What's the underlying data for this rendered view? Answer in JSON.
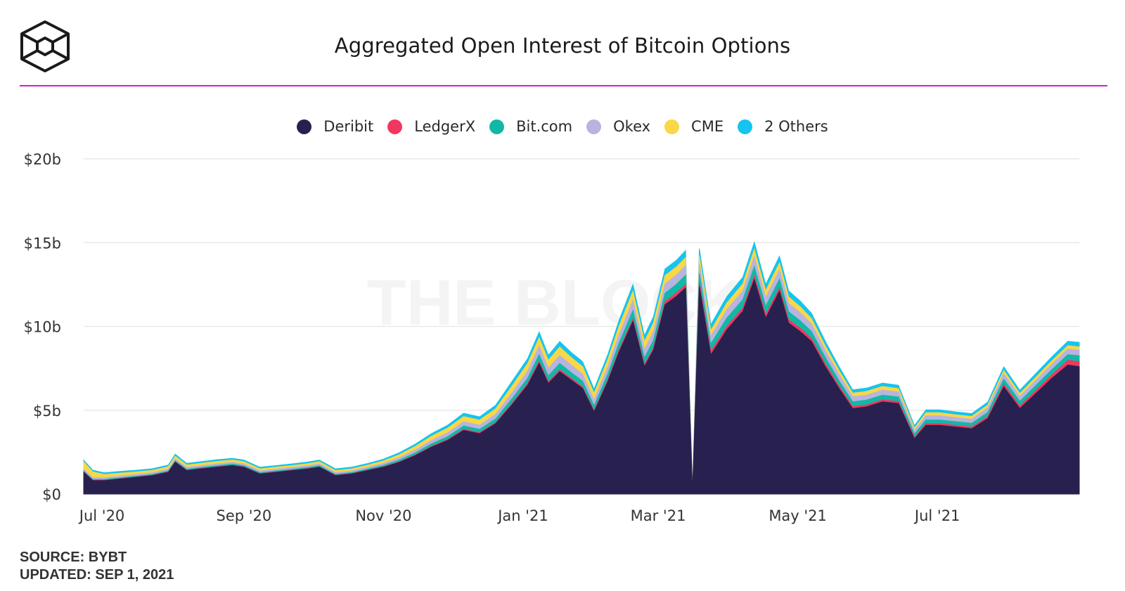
{
  "header": {
    "title": "Aggregated Open Interest of Bitcoin Options"
  },
  "watermark": "THE BLOCK",
  "footer": {
    "source": "SOURCE: BYBT",
    "updated": "UPDATED: SEP 1, 2021"
  },
  "colors": {
    "accent_rule": "#d21ad2"
  },
  "chart_data": {
    "type": "area",
    "stacked": true,
    "title": "Aggregated Open Interest of Bitcoin Options",
    "xlabel": "",
    "ylabel": "",
    "y_ticks": [
      "$0",
      "$5b",
      "$10b",
      "$15b",
      "$20b"
    ],
    "ylim": [
      0,
      20
    ],
    "y_unit": "billion USD",
    "x_ticks": [
      "Jul '20",
      "Sep '20",
      "Nov '20",
      "Jan '21",
      "Mar '21",
      "May '21",
      "Jul '21"
    ],
    "x_tick_dates": [
      "2020-07-01",
      "2020-09-01",
      "2020-11-01",
      "2021-01-01",
      "2021-03-01",
      "2021-05-01",
      "2021-07-01"
    ],
    "x": [
      "2020-06-23",
      "2020-06-27",
      "2020-07-02",
      "2020-07-09",
      "2020-07-16",
      "2020-07-23",
      "2020-07-30",
      "2020-08-02",
      "2020-08-07",
      "2020-08-13",
      "2020-08-20",
      "2020-08-27",
      "2020-09-01",
      "2020-09-08",
      "2020-09-15",
      "2020-09-22",
      "2020-09-29",
      "2020-10-04",
      "2020-10-11",
      "2020-10-18",
      "2020-10-25",
      "2020-11-01",
      "2020-11-08",
      "2020-11-15",
      "2020-11-22",
      "2020-11-29",
      "2020-12-06",
      "2020-12-13",
      "2020-12-20",
      "2020-12-27",
      "2021-01-03",
      "2021-01-08",
      "2021-01-12",
      "2021-01-17",
      "2021-01-22",
      "2021-01-27",
      "2021-02-01",
      "2021-02-07",
      "2021-02-12",
      "2021-02-18",
      "2021-02-23",
      "2021-02-27",
      "2021-03-04",
      "2021-03-09",
      "2021-03-13",
      "2021-03-16",
      "2021-03-19",
      "2021-03-24",
      "2021-03-31",
      "2021-04-07",
      "2021-04-12",
      "2021-04-17",
      "2021-04-23",
      "2021-04-27",
      "2021-05-02",
      "2021-05-07",
      "2021-05-13",
      "2021-05-19",
      "2021-05-25",
      "2021-05-31",
      "2021-06-07",
      "2021-06-14",
      "2021-06-21",
      "2021-06-26",
      "2021-07-02",
      "2021-07-09",
      "2021-07-16",
      "2021-07-23",
      "2021-07-30",
      "2021-08-06",
      "2021-08-13",
      "2021-08-20",
      "2021-08-27",
      "2021-09-01"
    ],
    "series": [
      {
        "name": "Deribit",
        "color": "#28214f",
        "values": [
          1.3,
          0.8,
          0.8,
          0.9,
          1.0,
          1.1,
          1.3,
          1.9,
          1.4,
          1.5,
          1.6,
          1.7,
          1.6,
          1.2,
          1.3,
          1.4,
          1.5,
          1.6,
          1.1,
          1.2,
          1.4,
          1.6,
          1.9,
          2.3,
          2.8,
          3.2,
          3.8,
          3.6,
          4.2,
          5.3,
          6.5,
          7.8,
          6.6,
          7.3,
          6.8,
          6.3,
          4.9,
          6.7,
          8.5,
          10.3,
          7.6,
          8.6,
          11.3,
          11.8,
          12.3,
          0.1,
          12.4,
          8.3,
          9.8,
          10.9,
          12.8,
          10.5,
          12.1,
          10.2,
          9.7,
          9.1,
          7.6,
          6.3,
          5.1,
          5.2,
          5.5,
          5.4,
          3.3,
          4.1,
          4.1,
          4.0,
          3.9,
          4.5,
          6.4,
          5.1,
          6.0,
          6.9,
          7.7,
          7.6
        ]
      },
      {
        "name": "LedgerX",
        "color": "#f2375e",
        "values": [
          0.02,
          0.02,
          0.02,
          0.02,
          0.02,
          0.02,
          0.02,
          0.02,
          0.02,
          0.02,
          0.02,
          0.02,
          0.02,
          0.02,
          0.02,
          0.02,
          0.02,
          0.02,
          0.02,
          0.02,
          0.02,
          0.03,
          0.03,
          0.04,
          0.05,
          0.05,
          0.06,
          0.06,
          0.06,
          0.08,
          0.1,
          0.12,
          0.1,
          0.11,
          0.1,
          0.1,
          0.08,
          0.1,
          0.12,
          0.15,
          0.12,
          0.13,
          0.18,
          0.2,
          0.2,
          0.01,
          0.22,
          0.2,
          0.2,
          0.2,
          0.22,
          0.2,
          0.2,
          0.2,
          0.2,
          0.18,
          0.18,
          0.15,
          0.12,
          0.12,
          0.12,
          0.12,
          0.08,
          0.1,
          0.1,
          0.1,
          0.1,
          0.12,
          0.15,
          0.15,
          0.18,
          0.2,
          0.28,
          0.3
        ]
      },
      {
        "name": "Bit.com",
        "color": "#12b8a6",
        "values": [
          0.05,
          0.05,
          0.05,
          0.05,
          0.05,
          0.05,
          0.06,
          0.06,
          0.06,
          0.06,
          0.07,
          0.07,
          0.07,
          0.06,
          0.06,
          0.06,
          0.07,
          0.07,
          0.06,
          0.06,
          0.07,
          0.08,
          0.1,
          0.12,
          0.15,
          0.17,
          0.2,
          0.2,
          0.22,
          0.28,
          0.32,
          0.4,
          0.35,
          0.38,
          0.35,
          0.33,
          0.28,
          0.35,
          0.42,
          0.5,
          0.4,
          0.45,
          0.5,
          0.52,
          0.55,
          0.01,
          0.55,
          0.45,
          0.5,
          0.5,
          0.55,
          0.5,
          0.52,
          0.48,
          0.45,
          0.42,
          0.38,
          0.32,
          0.28,
          0.28,
          0.28,
          0.27,
          0.2,
          0.22,
          0.22,
          0.22,
          0.22,
          0.25,
          0.3,
          0.28,
          0.3,
          0.32,
          0.34,
          0.35
        ]
      },
      {
        "name": "Okex",
        "color": "#b9b3e0",
        "values": [
          0.1,
          0.1,
          0.1,
          0.1,
          0.1,
          0.1,
          0.1,
          0.1,
          0.1,
          0.1,
          0.1,
          0.1,
          0.1,
          0.1,
          0.1,
          0.1,
          0.1,
          0.1,
          0.1,
          0.1,
          0.1,
          0.12,
          0.14,
          0.17,
          0.2,
          0.23,
          0.26,
          0.25,
          0.28,
          0.35,
          0.42,
          0.5,
          0.45,
          0.48,
          0.45,
          0.42,
          0.35,
          0.42,
          0.5,
          0.6,
          0.48,
          0.52,
          0.55,
          0.55,
          0.58,
          0.01,
          0.58,
          0.45,
          0.5,
          0.52,
          0.58,
          0.52,
          0.55,
          0.5,
          0.48,
          0.45,
          0.4,
          0.35,
          0.3,
          0.3,
          0.3,
          0.3,
          0.2,
          0.25,
          0.25,
          0.24,
          0.24,
          0.26,
          0.32,
          0.28,
          0.3,
          0.32,
          0.33,
          0.33
        ]
      },
      {
        "name": "CME",
        "color": "#fad745",
        "values": [
          0.45,
          0.35,
          0.2,
          0.18,
          0.15,
          0.14,
          0.15,
          0.18,
          0.15,
          0.15,
          0.15,
          0.14,
          0.14,
          0.12,
          0.12,
          0.12,
          0.12,
          0.14,
          0.12,
          0.12,
          0.13,
          0.15,
          0.18,
          0.22,
          0.25,
          0.28,
          0.3,
          0.3,
          0.32,
          0.4,
          0.45,
          0.5,
          0.48,
          0.5,
          0.45,
          0.45,
          0.4,
          0.45,
          0.5,
          0.55,
          0.5,
          0.52,
          0.5,
          0.48,
          0.48,
          0.01,
          0.48,
          0.35,
          0.4,
          0.42,
          0.45,
          0.4,
          0.42,
          0.38,
          0.35,
          0.32,
          0.28,
          0.25,
          0.22,
          0.22,
          0.22,
          0.2,
          0.15,
          0.18,
          0.18,
          0.17,
          0.17,
          0.18,
          0.2,
          0.18,
          0.19,
          0.2,
          0.2,
          0.2
        ]
      },
      {
        "name": "2 Others",
        "color": "#15c4f0",
        "values": [
          0.1,
          0.1,
          0.1,
          0.1,
          0.1,
          0.1,
          0.1,
          0.12,
          0.1,
          0.1,
          0.1,
          0.1,
          0.1,
          0.1,
          0.1,
          0.1,
          0.1,
          0.1,
          0.1,
          0.1,
          0.1,
          0.1,
          0.12,
          0.14,
          0.16,
          0.18,
          0.2,
          0.2,
          0.22,
          0.28,
          0.3,
          0.35,
          0.3,
          0.33,
          0.3,
          0.3,
          0.25,
          0.3,
          0.35,
          0.4,
          0.35,
          0.38,
          0.4,
          0.4,
          0.42,
          0.01,
          0.42,
          0.35,
          0.38,
          0.4,
          0.42,
          0.38,
          0.4,
          0.36,
          0.34,
          0.32,
          0.28,
          0.24,
          0.2,
          0.2,
          0.2,
          0.2,
          0.15,
          0.17,
          0.17,
          0.17,
          0.17,
          0.18,
          0.22,
          0.2,
          0.22,
          0.24,
          0.26,
          0.27
        ]
      }
    ],
    "grid": true,
    "legend_placement": "top-center"
  }
}
